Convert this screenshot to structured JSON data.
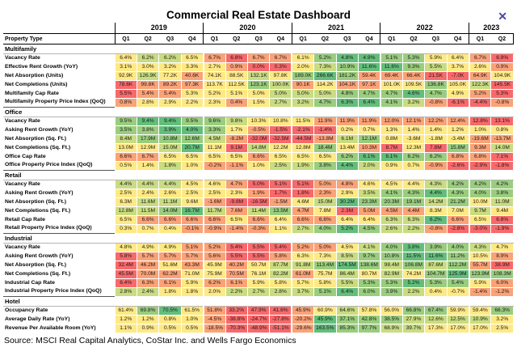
{
  "window": {
    "title": "Commercial Real Estate Dashboard",
    "close_glyph": "✕",
    "close_color": "#4a4a9e"
  },
  "palette": {
    "r": "#F8696B",
    "o": "#FBA277",
    "y": "#FFE984",
    "l": "#C9DC81",
    "g": "#9ACD7E",
    "G": "#63BE7B"
  },
  "columns": {
    "property_type_header": "Property Type",
    "years": [
      {
        "label": "2019",
        "quarters": [
          "Q1",
          "Q2",
          "Q3",
          "Q4"
        ]
      },
      {
        "label": "2020",
        "quarters": [
          "Q1",
          "Q2",
          "Q3",
          "Q4"
        ]
      },
      {
        "label": "2021",
        "quarters": [
          "Q1",
          "Q2",
          "Q3",
          "Q4"
        ]
      },
      {
        "label": "2022",
        "quarters": [
          "Q1",
          "Q2",
          "Q3",
          "Q4"
        ]
      },
      {
        "label": "2023",
        "quarters": [
          "Q1",
          "Q2"
        ]
      }
    ]
  },
  "sections": [
    {
      "name": "Multifamily",
      "rows": [
        {
          "label": "Vacancy Rate",
          "values": [
            "6.4%",
            "6.2%",
            "6.2%",
            "6.5%",
            "6.7%",
            "6.8%",
            "6.7%",
            "6.7%",
            "6.1%",
            "5.2%",
            "4.8%",
            "4.9%",
            "5.1%",
            "5.3%",
            "5.9%",
            "6.4%",
            "6.7%",
            "6.9%"
          ],
          "colors": "yllyorooygGGggyyor"
        },
        {
          "label": "Effective Rent Growth (YoY)",
          "values": [
            "3.1%",
            "3.0%",
            "3.2%",
            "3.3%",
            "2.7%",
            "0.9%",
            "0.0%",
            "0.3%",
            "2.0%",
            "7.3%",
            "10.9%",
            "11.6%",
            "11.6%",
            "9.3%",
            "5.5%",
            "3.7%",
            "2.6%",
            "0.9%"
          ],
          "colors": "yyyyyorrylgGGglyyo"
        },
        {
          "label": "Net Absorption (Units)",
          "values": [
            "92.9K",
            "126.9K",
            "77.2K",
            "40.6K",
            "74.1K",
            "88.5K",
            "132.1K",
            "97.8K",
            "189.0K",
            "266.6K",
            "181.2K",
            "59.4K",
            "69.4K",
            "66.4K",
            "21.5K",
            "-7.0K",
            "64.9K",
            "104.9K"
          ],
          "colors": "ylyoyylygGgooorroy"
        },
        {
          "label": "Net Completions (Units)",
          "values": [
            "78.6K",
            "99.8K",
            "89.2K",
            "97.3K",
            "113.7K",
            "112.5K",
            "123.1K",
            "100.0K",
            "90.1K",
            "114.2K",
            "104.1K",
            "97.1K",
            "101.0K",
            "109.5K",
            "136.8K",
            "105.0K",
            "122.3K",
            "145.5K"
          ],
          "colors": "roooyygloyooyygylr"
        },
        {
          "label": "Multifamily Cap Rate",
          "values": [
            "5.5%",
            "5.4%",
            "5.4%",
            "5.3%",
            "5.2%",
            "5.1%",
            "5.0%",
            "5.0%",
            "5.0%",
            "5.0%",
            "4.8%",
            "4.7%",
            "4.7%",
            "4.6%",
            "4.7%",
            "4.9%",
            "5.2%",
            "5.3%"
          ],
          "colors": "rooyyyylllgggGgyor"
        },
        {
          "label": "Multifamily Property Price Index (QoQ)",
          "values": [
            "0.8%",
            "2.8%",
            "2.9%",
            "2.2%",
            "2.3%",
            "0.4%",
            "1.5%",
            "2.7%",
            "3.2%",
            "4.7%",
            "6.3%",
            "6.4%",
            "4.1%",
            "3.2%",
            "-0.8%",
            "-6.1%",
            "-4.4%",
            "-0.8%"
          ],
          "colors": "oyyyyoyllgGGglorro"
        }
      ]
    },
    {
      "name": "Office",
      "rows": [
        {
          "label": "Vacancy Rate",
          "values": [
            "9.5%",
            "9.4%",
            "9.4%",
            "9.5%",
            "9.6%",
            "9.8%",
            "10.3%",
            "10.8%",
            "11.5%",
            "11.9%",
            "11.9%",
            "11.9%",
            "12.0%",
            "12.1%",
            "12.2%",
            "12.4%",
            "12.8%",
            "13.1%"
          ],
          "colors": "gGGgglyyyooooooorr"
        },
        {
          "label": "Asking Rent Growth (YoY)",
          "values": [
            "3.5%",
            "3.8%",
            "3.9%",
            "4.0%",
            "3.3%",
            "1.7%",
            "-0.5%",
            "-1.5%",
            "-2.1%",
            "-1.4%",
            "0.2%",
            "0.7%",
            "1.3%",
            "1.4%",
            "1.4%",
            "1.2%",
            "1.0%",
            "0.8%"
          ],
          "colors": "ggGGgyorrryyyyyyyy"
        },
        {
          "label": "Net Absorption (Sq. Ft.)",
          "values": [
            "8.4M",
            "17.9M",
            "10.8M",
            "12.6M",
            "4.5M",
            "-8.2M",
            "-32.0M",
            "-32.5M",
            "-44.5M",
            "-13.8M",
            "6.1M",
            "12.1M",
            "0.8M",
            "-3.6M",
            "-1.8M",
            "-3.4M",
            "-19.6M",
            "-13.7M"
          ],
          "colors": "lggglorrrolgyyyyoo"
        },
        {
          "label": "Net Completions (Sq. Ft.)",
          "values": [
            "13.0M",
            "12.9M",
            "15.0M",
            "20.7M",
            "11.1M",
            "9.1M",
            "14.8M",
            "12.2M",
            "12.8M",
            "18.4M",
            "13.4M",
            "10.3M",
            "8.7M",
            "12.3M",
            "7.8M",
            "15.8M",
            "9.3M",
            "14.0M"
          ],
          "colors": "yylGyrlyygyoryrgol"
        },
        {
          "label": "Office Cap Rate",
          "values": [
            "6.6%",
            "6.7%",
            "6.5%",
            "6.5%",
            "6.5%",
            "6.5%",
            "6.6%",
            "6.5%",
            "6.5%",
            "6.5%",
            "6.2%",
            "6.1%",
            "6.1%",
            "6.2%",
            "6.2%",
            "6.8%",
            "6.8%",
            "7.1%"
          ],
          "colors": "ooyyyyoyyygGGggoor"
        },
        {
          "label": "Office Property Price Index (QoQ)",
          "values": [
            "0.5%",
            "1.4%",
            "1.8%",
            "1.0%",
            "-0.2%",
            "-1.1%",
            "1.0%",
            "2.5%",
            "1.9%",
            "3.8%",
            "4.4%",
            "2.0%",
            "0.9%",
            "0.7%",
            "-0.9%",
            "-2.6%",
            "-2.9%",
            "-1.8%"
          ],
          "colors": "yylyooyllgGlyyorrr"
        }
      ]
    },
    {
      "name": "Retail",
      "rows": [
        {
          "label": "Vacancy Rate",
          "values": [
            "4.4%",
            "4.4%",
            "4.4%",
            "4.5%",
            "4.6%",
            "4.7%",
            "5.0%",
            "5.1%",
            "5.1%",
            "5.0%",
            "4.8%",
            "4.6%",
            "4.5%",
            "4.4%",
            "4.3%",
            "4.2%",
            "4.2%",
            "4.2%"
          ],
          "colors": "lllyyorrrooyyylggg"
        },
        {
          "label": "Asking Rent Growth (YoY)",
          "values": [
            "2.5%",
            "2.4%",
            "2.6%",
            "2.5%",
            "2.5%",
            "2.3%",
            "1.9%",
            "1.7%",
            "1.8%",
            "2.3%",
            "2.9%",
            "3.5%",
            "4.1%",
            "4.3%",
            "4.4%",
            "4.3%",
            "4.0%",
            "3.8%"
          ],
          "colors": "yyyyyyorroylggGggg"
        },
        {
          "label": "Net Absorption (Sq. Ft.)",
          "values": [
            "6.3M",
            "11.6M",
            "11.1M",
            "9.6M",
            "-1.6M",
            "-9.8M",
            "-16.5M",
            "-1.5M",
            "4.6M",
            "15.0M",
            "30.2M",
            "23.3M",
            "20.3M",
            "19.1M",
            "14.2M",
            "21.2M",
            "10.0M",
            "11.0M"
          ],
          "colors": "yllyorroylGggglgyl"
        },
        {
          "label": "Net Completions (Sq. Ft.)",
          "values": [
            "12.8M",
            "11.5M",
            "14.0M",
            "16.7M",
            "11.7M",
            "7.6M",
            "11.4M",
            "13.5M",
            "4.7M",
            "7.8M",
            "2.3M",
            "5.0M",
            "4.5M",
            "4.4M",
            "8.3M",
            "7.0M",
            "9.7M",
            "9.4M"
          ],
          "colors": "llgGlolgoyroooyyly"
        },
        {
          "label": "Retail Cap Rate",
          "values": [
            "6.5%",
            "6.6%",
            "6.6%",
            "6.6%",
            "6.6%",
            "6.5%",
            "6.6%",
            "6.4%",
            "6.6%",
            "6.6%",
            "6.4%",
            "6.4%",
            "6.3%",
            "6.3%",
            "6.2%",
            "6.6%",
            "6.5%",
            "6.8%"
          ],
          "colors": "yooooyoyooyyllGoyr"
        },
        {
          "label": "Retail Property Price Index (QoQ)",
          "values": [
            "0.3%",
            "0.7%",
            "0.4%",
            "-0.1%",
            "-0.9%",
            "-1.4%",
            "-0.3%",
            "1.1%",
            "2.7%",
            "4.0%",
            "5.2%",
            "4.5%",
            "2.6%",
            "2.2%",
            "-0.8%",
            "-2.8%",
            "-3.0%",
            "-1.9%"
          ],
          "colors": "yyyooooylgGgllorrr"
        }
      ]
    },
    {
      "name": "Industrial",
      "rows": [
        {
          "label": "Vacancy Rate",
          "values": [
            "4.8%",
            "4.9%",
            "4.9%",
            "5.1%",
            "5.2%",
            "5.4%",
            "5.5%",
            "5.4%",
            "5.2%",
            "5.0%",
            "4.5%",
            "4.1%",
            "4.0%",
            "3.8%",
            "3.9%",
            "4.0%",
            "4.3%",
            "4.7%"
          ],
          "colors": "yyyoorrrooylgGggly"
        },
        {
          "label": "Asking Rent Growth (YoY)",
          "values": [
            "5.8%",
            "5.7%",
            "5.7%",
            "5.7%",
            "5.6%",
            "5.5%",
            "5.5%",
            "5.8%",
            "6.3%",
            "7.3%",
            "8.5%",
            "9.7%",
            "10.8%",
            "11.5%",
            "11.6%",
            "11.2%",
            "10.5%",
            "8.9%"
          ],
          "colors": "roooorroyylggGGgyo"
        },
        {
          "label": "Net Absorption (Sq. Ft.)",
          "values": [
            "32.4M",
            "46.2M",
            "51.6M",
            "43.3M",
            "45.9M",
            "40.2M",
            "50.7M",
            "87.7M",
            "91.8M",
            "113.4M",
            "174.5M",
            "138.6M",
            "98.4M",
            "106.8M",
            "87.6M",
            "112.2M",
            "55.7M",
            "38.9M"
          ],
          "colors": "royoyoyllgGglglgor"
        },
        {
          "label": "Net Completions (Sq. Ft.)",
          "values": [
            "45.5M",
            "70.0M",
            "62.2M",
            "71.0M",
            "75.9M",
            "70.5M",
            "76.1M",
            "82.2M",
            "61.0M",
            "75.7M",
            "86.4M",
            "80.7M",
            "82.9M",
            "74.2M",
            "104.7M",
            "125.9M",
            "123.9M",
            "108.3M"
          ],
          "colors": "rooyyoyloylylygGgg"
        },
        {
          "label": "Industrial Cap Rate",
          "values": [
            "6.4%",
            "6.3%",
            "6.1%",
            "5.9%",
            "6.2%",
            "6.1%",
            "5.9%",
            "5.8%",
            "5.7%",
            "5.8%",
            "5.5%",
            "5.3%",
            "5.3%",
            "5.2%",
            "5.3%",
            "5.4%",
            "5.9%",
            "6.0%"
          ],
          "colors": "rooyooyyyylggGggyo"
        },
        {
          "label": "Industrial Property Price Index (QoQ)",
          "values": [
            "2.8%",
            "2.4%",
            "1.8%",
            "1.8%",
            "2.0%",
            "2.2%",
            "2.7%",
            "2.8%",
            "3.7%",
            "5.1%",
            "6.4%",
            "6.0%",
            "3.9%",
            "2.2%",
            "0.4%",
            "-0.7%",
            "-1.4%",
            "-1.2%"
          ],
          "colors": "llyyyllllgGgglyyoo"
        }
      ]
    },
    {
      "name": "Hotel",
      "rows": [
        {
          "label": "Occupancy Rate",
          "values": [
            "61.4%",
            "69.8%",
            "70.5%",
            "61.5%",
            "51.8%",
            "33.2%",
            "47.9%",
            "41.6%",
            "45.9%",
            "60.9%",
            "64.6%",
            "57.8%",
            "56.0%",
            "66.8%",
            "67.4%",
            "59.9%",
            "59.4%",
            "66.3%"
          ],
          "colors": "ygGyorrroylyyggyyg"
        },
        {
          "label": "Average Daily Rate (YoY)",
          "values": [
            "1.2%",
            "1.2%",
            "0.8%",
            "1.0%",
            "-4.5%",
            "-38.8%",
            "-24.7%",
            "-27.8%",
            "-20.2%",
            "45.9%",
            "37.1%",
            "42.8%",
            "38.5%",
            "27.9%",
            "12.6%",
            "12.5%",
            "10.9%",
            "3.2%"
          ],
          "colors": "yyyyorrroGggglllly"
        },
        {
          "label": "Revenue Per Available Room (YoY)",
          "values": [
            "1.1%",
            "0.9%",
            "0.5%",
            "0.5%",
            "-18.5%",
            "-70.3%",
            "-48.9%",
            "-51.1%",
            "-29.6%",
            "163.5%",
            "85.3%",
            "97.7%",
            "68.9%",
            "39.7%",
            "17.3%",
            "17.0%",
            "17.0%",
            "2.5%"
          ],
          "colors": "yyyyorrroGggllyyyy"
        }
      ]
    }
  ],
  "source": "Source: MSCI Real Capital Analytics, CoStar Inc. and Wells Fargo Economics"
}
